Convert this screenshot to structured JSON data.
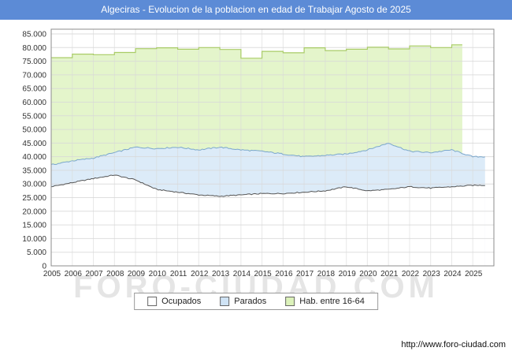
{
  "title_bar": {
    "title": "Algeciras - Evolucion de la poblacion en edad de Trabajar Agosto de 2025"
  },
  "watermark": "FORO-CIUDAD.COM",
  "footer": {
    "url": "http://www.foro-ciudad.com"
  },
  "colors": {
    "titlebar_bg": "#5c8bd6",
    "titlebar_fg": "#ffffff",
    "grid": "#d9d9d9",
    "plot_border": "#8c8c8c",
    "axis_text": "#333333",
    "hab_fill": "#e4f5cb",
    "hab_line": "#a9cc67",
    "parados_fill": "#dcebf8",
    "parados_line": "#7ba7cc",
    "ocupados_fill": "#ffffff",
    "ocupados_line": "#555555"
  },
  "legend": {
    "items": [
      {
        "label": "Ocupados",
        "fill": "#ffffff",
        "border": "#666666"
      },
      {
        "label": "Parados",
        "fill": "#cfe3f5",
        "border": "#666666"
      },
      {
        "label": "Hab. entre 16-64",
        "fill": "#dcf2ba",
        "border": "#666666"
      }
    ]
  },
  "chart_data": {
    "type": "area",
    "title": "Algeciras - Evolucion de la poblacion en edad de Trabajar Agosto de 2025",
    "legend_position": "bottom",
    "grid": true,
    "ylim": [
      0,
      85000
    ],
    "ytick_step": 5000,
    "y_tick_labels": [
      "0",
      "5.000",
      "10.000",
      "15.000",
      "20.000",
      "25.000",
      "30.000",
      "35.000",
      "40.000",
      "45.000",
      "50.000",
      "55.000",
      "60.000",
      "65.000",
      "70.000",
      "75.000",
      "80.000",
      "85.000"
    ],
    "x_years": [
      2005,
      2006,
      2007,
      2008,
      2009,
      2010,
      2011,
      2012,
      2013,
      2014,
      2015,
      2016,
      2017,
      2018,
      2019,
      2020,
      2021,
      2022,
      2023,
      2024,
      2025
    ],
    "x_tick_labels": [
      "2005",
      "2006",
      "2007",
      "2008",
      "2009",
      "2010",
      "2011",
      "2012",
      "2013",
      "2014",
      "2015",
      "2016",
      "2017",
      "2018",
      "2019",
      "2020",
      "2021",
      "2022",
      "2023",
      "2024",
      "2025"
    ],
    "series": [
      {
        "name": "Hab. entre 16-64",
        "type": "step-area",
        "data_end_year": 2024.5,
        "values": [
          76300,
          77600,
          77400,
          78200,
          79600,
          79900,
          79400,
          80000,
          79300,
          76100,
          78600,
          78100,
          79900,
          78900,
          79400,
          80100,
          79500,
          80600,
          80000,
          81000,
          null
        ]
      },
      {
        "name": "Parados",
        "type": "area",
        "stacked_on": "Ocupados",
        "data_end_year": 2025.58,
        "values": [
          8000,
          8000,
          7500,
          8200,
          12000,
          15000,
          16500,
          16500,
          18000,
          16500,
          15500,
          14500,
          13000,
          13000,
          12000,
          15000,
          17000,
          13000,
          13000,
          13500,
          10500
        ]
      },
      {
        "name": "Ocupados",
        "type": "area",
        "data_end_year": 2025.58,
        "values": [
          29000,
          30500,
          32000,
          33300,
          31500,
          28000,
          27000,
          26000,
          25500,
          26000,
          26500,
          26500,
          27000,
          27500,
          29000,
          27500,
          28000,
          29000,
          28500,
          29000,
          29500
        ]
      }
    ]
  }
}
